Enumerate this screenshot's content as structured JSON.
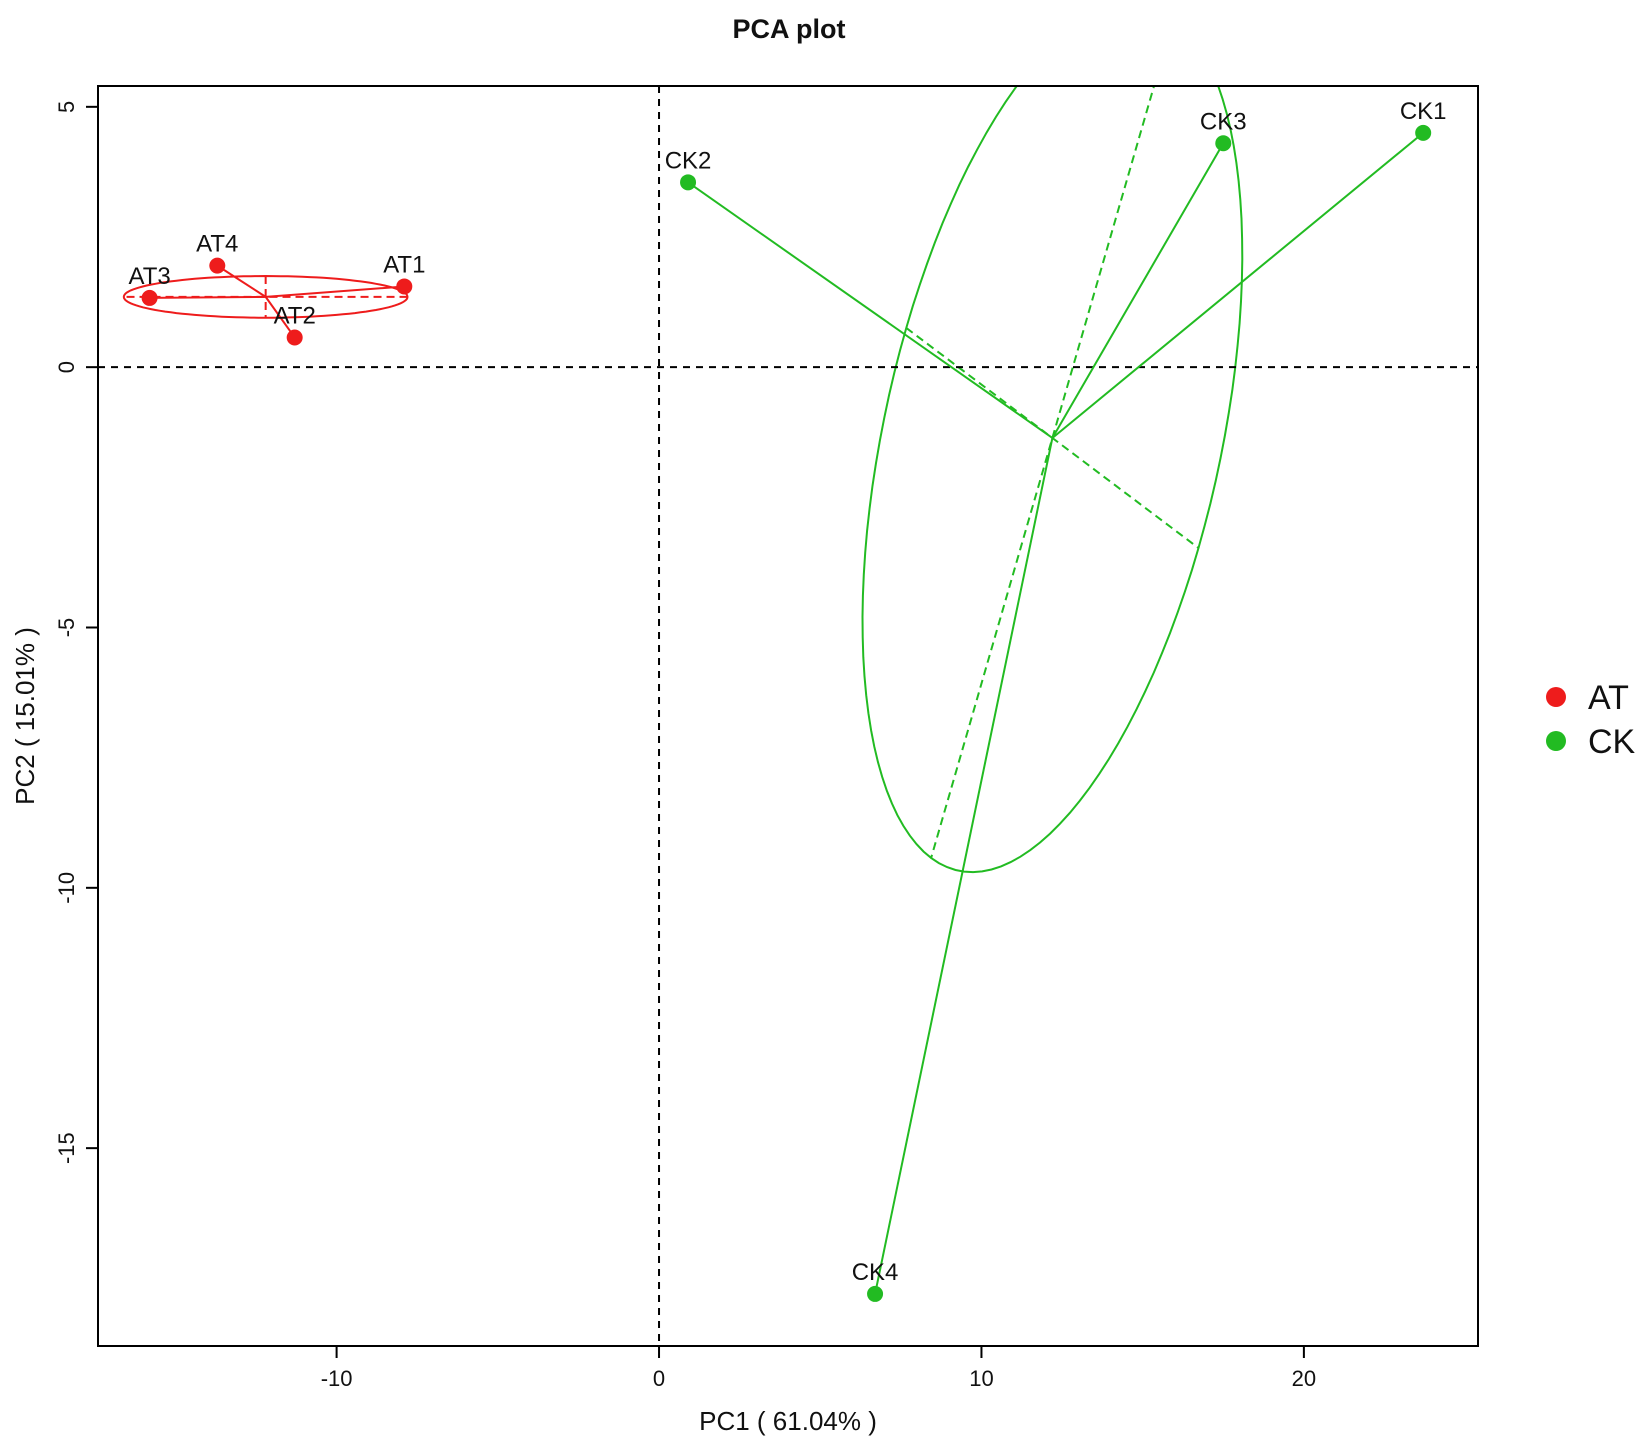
{
  "chart_data": {
    "type": "scatter",
    "title": "PCA plot",
    "xlabel": "PC1 ( 61.04% )",
    "ylabel": "PC2 ( 15.01% )",
    "xlim": [
      -17.4,
      25.4
    ],
    "ylim": [
      -18.8,
      5.4
    ],
    "xticks": [
      -10,
      0,
      10,
      20
    ],
    "yticks": [
      5,
      0,
      -5,
      -10,
      -15
    ],
    "reference_lines": {
      "x": 0,
      "y": 0
    },
    "grid": false,
    "legend_position": "right",
    "series": [
      {
        "name": "AT",
        "color": "#ee1c1c",
        "points": [
          {
            "label": "AT1",
            "x": -7.9,
            "y": 1.55
          },
          {
            "label": "AT2",
            "x": -11.3,
            "y": 0.57
          },
          {
            "label": "AT3",
            "x": -15.8,
            "y": 1.33
          },
          {
            "label": "AT4",
            "x": -13.7,
            "y": 1.95
          }
        ],
        "center": {
          "x": -12.2,
          "y": 1.35
        },
        "ellipse": {
          "semi_axis_1": 4.4,
          "semi_axis_2": 0.4,
          "angle_deg": 0
        }
      },
      {
        "name": "CK",
        "color": "#22bb22",
        "points": [
          {
            "label": "CK1",
            "x": 23.7,
            "y": 4.5
          },
          {
            "label": "CK2",
            "x": 0.9,
            "y": 3.55
          },
          {
            "label": "CK3",
            "x": 17.5,
            "y": 4.3
          },
          {
            "label": "CK4",
            "x": 6.7,
            "y": -17.8
          }
        ],
        "center": {
          "x": 12.2,
          "y": -1.36
        },
        "ellipse": {
          "semi_axis_1": 8.9,
          "semi_axis_2": 5.0,
          "angle_deg": 65
        }
      }
    ]
  }
}
